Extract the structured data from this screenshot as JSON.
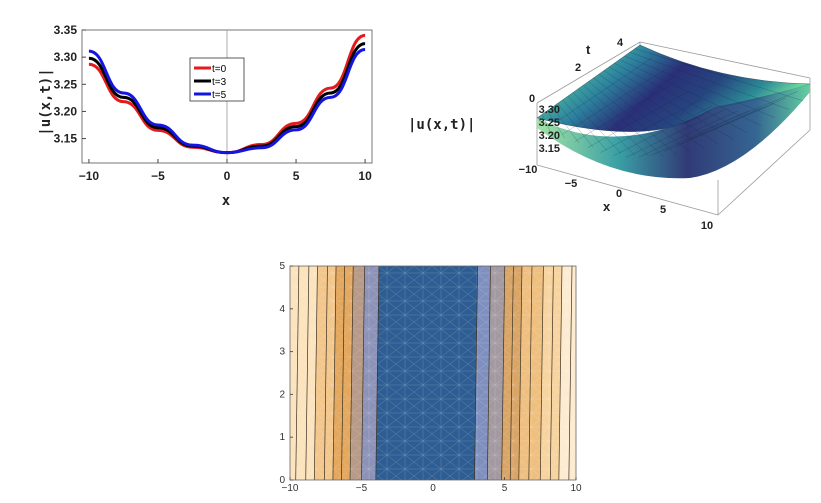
{
  "chart_data": [
    {
      "type": "line",
      "title": "",
      "xlabel": "x",
      "ylabel": "|u(x,t)|",
      "xlim": [
        -10.5,
        10.5
      ],
      "ylim": [
        3.105,
        3.35
      ],
      "xticks": [
        "−10",
        "−5",
        "0",
        "5",
        "10"
      ],
      "yticks": [
        "3.15",
        "3.20",
        "3.25",
        "3.30",
        "3.35"
      ],
      "legend_position": "top-center",
      "grid": false,
      "series": [
        {
          "name": "t=0",
          "color": "#e41a1c",
          "x": [
            -10,
            -7.5,
            -5,
            -2.5,
            0,
            2.5,
            5,
            7.5,
            10
          ],
          "values": [
            3.287,
            3.218,
            3.165,
            3.134,
            3.124,
            3.139,
            3.178,
            3.243,
            3.34
          ]
        },
        {
          "name": "t=3",
          "color": "#000000",
          "x": [
            -10,
            -7.5,
            -5,
            -2.5,
            0,
            2.5,
            5,
            7.5,
            10
          ],
          "values": [
            3.298,
            3.226,
            3.17,
            3.136,
            3.124,
            3.136,
            3.172,
            3.234,
            3.325
          ]
        },
        {
          "name": "t=5",
          "color": "#1515e0",
          "x": [
            -10,
            -7.5,
            -5,
            -2.5,
            0,
            2.5,
            5,
            7.5,
            10
          ],
          "values": [
            3.311,
            3.234,
            3.175,
            3.138,
            3.124,
            3.133,
            3.166,
            3.226,
            3.314
          ]
        }
      ]
    },
    {
      "type": "surface",
      "title": "",
      "xlabel": "x",
      "ylabel": "t",
      "zlabel": "|u(x,t)|",
      "xticks": [
        "−10",
        "−5",
        "0",
        "5",
        "10"
      ],
      "tticks": [
        "0",
        "2",
        "4"
      ],
      "zticks": [
        "3.30",
        "3.25",
        "3.20",
        "3.15"
      ],
      "colormap": "viridis"
    },
    {
      "type": "contour",
      "title": "",
      "xlim": [
        -10,
        10
      ],
      "ylim": [
        0,
        5
      ],
      "xticks": [
        "−10",
        "−5",
        "0",
        "5",
        "10"
      ],
      "yticks": [
        "0",
        "1",
        "2",
        "3",
        "4",
        "5"
      ],
      "colormap": "blue-orange"
    }
  ]
}
